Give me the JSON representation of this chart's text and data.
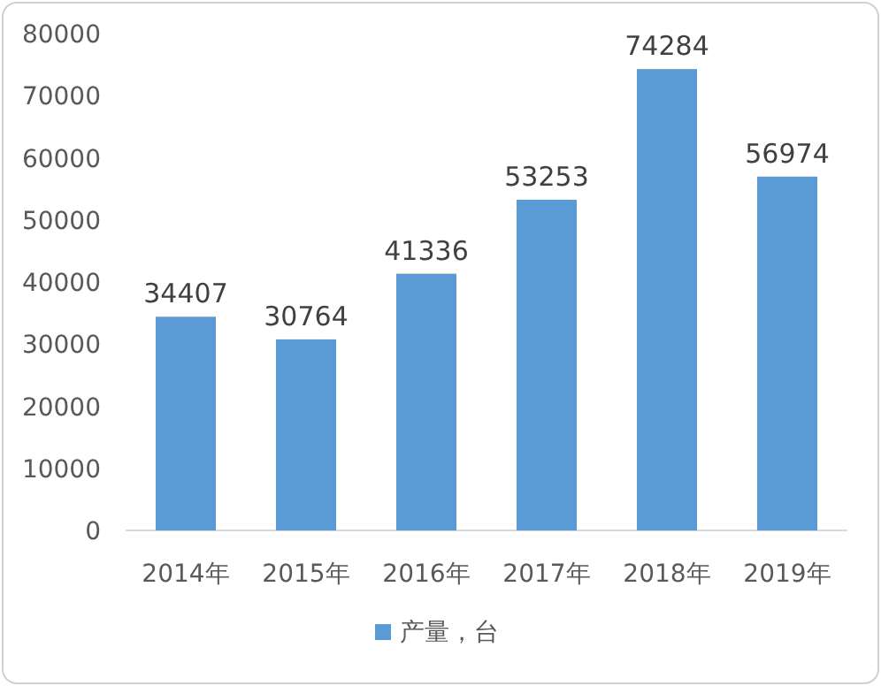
{
  "chart_data": {
    "type": "bar",
    "categories": [
      "2014年",
      "2015年",
      "2016年",
      "2017年",
      "2018年",
      "2019年"
    ],
    "series": [
      {
        "name": "产量，台",
        "color": "#5b9bd5",
        "values": [
          34407,
          30764,
          41336,
          53253,
          74284,
          56974
        ]
      }
    ],
    "ylim": [
      0,
      80000
    ],
    "yticks": [
      0,
      10000,
      20000,
      30000,
      40000,
      50000,
      60000,
      70000,
      80000
    ],
    "data_labels": true,
    "legend": "bottom"
  }
}
